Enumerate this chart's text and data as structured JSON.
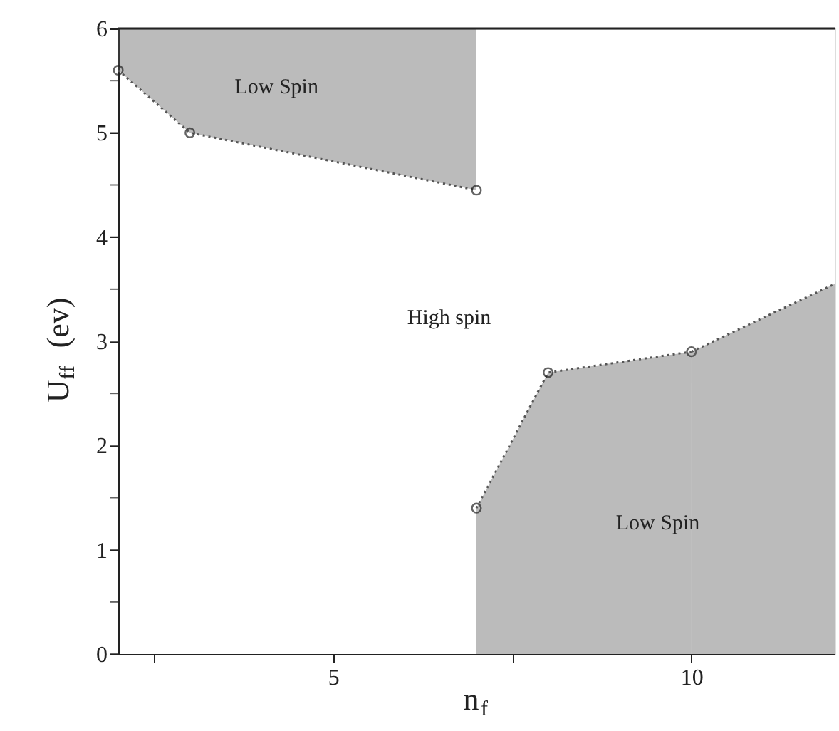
{
  "chart_data": {
    "type": "line",
    "xlabel": "n$_{f}$",
    "ylabel": "U$_{ff}$ (ev)",
    "xlim": [
      2,
      12
    ],
    "ylim": [
      0,
      6
    ],
    "xticks": [
      {
        "value": 2.5,
        "label": null
      },
      5,
      {
        "value": 7.5,
        "label": null
      },
      10
    ],
    "yticks": [
      0,
      {
        "value": 0.5,
        "label": null
      },
      1,
      {
        "value": 1.5,
        "label": null
      },
      2,
      {
        "value": 2.5,
        "label": null
      },
      3,
      {
        "value": 3.5,
        "label": null
      },
      4,
      {
        "value": 4.5,
        "label": null
      },
      5,
      {
        "value": 5.5,
        "label": null
      },
      6
    ],
    "grid": false,
    "line_style": "dotted",
    "series": [
      {
        "color": "#555555",
        "marker": "circle",
        "x": [
          2,
          3,
          7
        ],
        "values": [
          5.6,
          5.0,
          4.45
        ],
        "lower": [
          5.6,
          5.0,
          4.45
        ],
        "upper": [
          6,
          6,
          6
        ]
      },
      {
        "color": "#555555",
        "marker": "circle",
        "x": [
          7,
          8,
          10
        ],
        "values": [
          1.4,
          2.7,
          2.9
        ],
        "lower": [
          0,
          0,
          0
        ],
        "upper": [
          1.4,
          2.7,
          2.9
        ]
      },
      {
        "color": "#555555",
        "marker": "none",
        "x": [
          10,
          12
        ],
        "values": [
          2.9,
          3.55
        ],
        "lower": [
          0,
          0
        ],
        "upper": [
          2.9,
          3.55
        ]
      }
    ],
    "annotations": [
      "Low Spin",
      "High spin",
      "Low Spin"
    ]
  }
}
